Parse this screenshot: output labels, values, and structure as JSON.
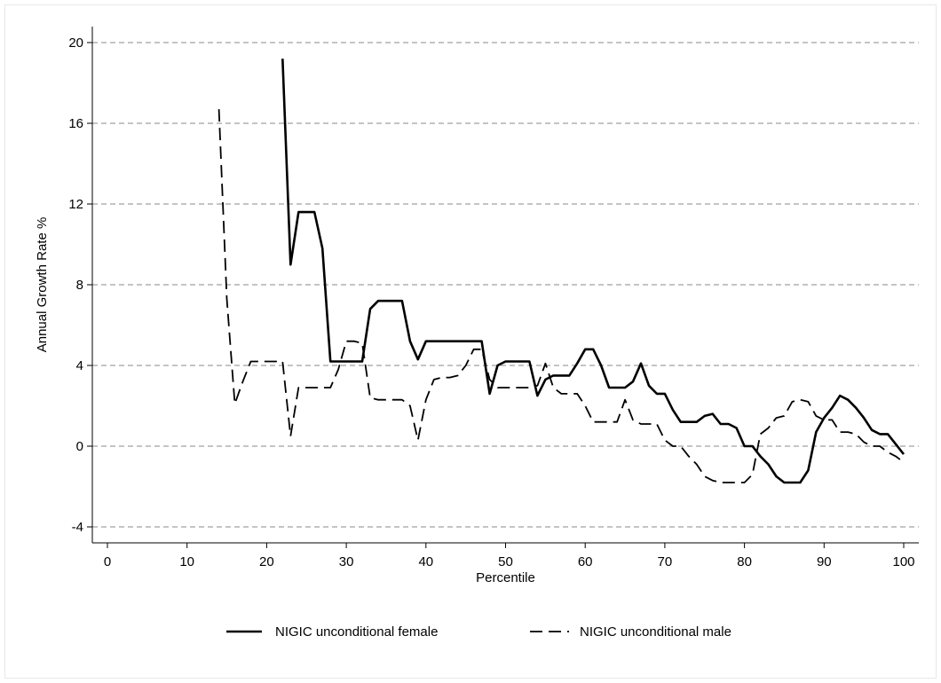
{
  "chart_data": {
    "type": "line",
    "title": "",
    "xlabel": "Percentile",
    "ylabel": "Annual Growth Rate %",
    "xlim": [
      0,
      100
    ],
    "ylim": [
      -4,
      20
    ],
    "xticks": [
      0,
      10,
      20,
      30,
      40,
      50,
      60,
      70,
      80,
      90,
      100
    ],
    "yticks": [
      -4,
      0,
      4,
      8,
      12,
      16,
      20
    ],
    "grid": "horizontal dashed",
    "legend_position": "bottom",
    "series": [
      {
        "name": "NIGIC unconditional female",
        "style": "solid",
        "color": "#000000",
        "points": [
          [
            22,
            19.2
          ],
          [
            23,
            9.0
          ],
          [
            24,
            11.6
          ],
          [
            25,
            11.6
          ],
          [
            26,
            11.6
          ],
          [
            27,
            9.8
          ],
          [
            28,
            4.2
          ],
          [
            29,
            4.2
          ],
          [
            30,
            4.2
          ],
          [
            31,
            4.2
          ],
          [
            32,
            4.2
          ],
          [
            33,
            6.8
          ],
          [
            34,
            7.2
          ],
          [
            35,
            7.2
          ],
          [
            36,
            7.2
          ],
          [
            37,
            7.2
          ],
          [
            38,
            5.2
          ],
          [
            39,
            4.3
          ],
          [
            40,
            5.2
          ],
          [
            41,
            5.2
          ],
          [
            42,
            5.2
          ],
          [
            43,
            5.2
          ],
          [
            44,
            5.2
          ],
          [
            45,
            5.2
          ],
          [
            46,
            5.2
          ],
          [
            47,
            5.2
          ],
          [
            48,
            2.6
          ],
          [
            49,
            4.0
          ],
          [
            50,
            4.2
          ],
          [
            51,
            4.2
          ],
          [
            52,
            4.2
          ],
          [
            53,
            4.2
          ],
          [
            54,
            2.5
          ],
          [
            55,
            3.3
          ],
          [
            56,
            3.5
          ],
          [
            57,
            3.5
          ],
          [
            58,
            3.5
          ],
          [
            59,
            4.1
          ],
          [
            60,
            4.8
          ],
          [
            61,
            4.8
          ],
          [
            62,
            4.0
          ],
          [
            63,
            2.9
          ],
          [
            64,
            2.9
          ],
          [
            65,
            2.9
          ],
          [
            66,
            3.2
          ],
          [
            67,
            4.1
          ],
          [
            68,
            3.0
          ],
          [
            69,
            2.6
          ],
          [
            70,
            2.6
          ],
          [
            71,
            1.8
          ],
          [
            72,
            1.2
          ],
          [
            73,
            1.2
          ],
          [
            74,
            1.2
          ],
          [
            75,
            1.5
          ],
          [
            76,
            1.6
          ],
          [
            77,
            1.1
          ],
          [
            78,
            1.1
          ],
          [
            79,
            0.9
          ],
          [
            80,
            0.0
          ],
          [
            81,
            0.0
          ],
          [
            82,
            -0.5
          ],
          [
            83,
            -0.9
          ],
          [
            84,
            -1.5
          ],
          [
            85,
            -1.8
          ],
          [
            86,
            -1.8
          ],
          [
            87,
            -1.8
          ],
          [
            88,
            -1.2
          ],
          [
            89,
            0.7
          ],
          [
            90,
            1.4
          ],
          [
            91,
            1.9
          ],
          [
            92,
            2.5
          ],
          [
            93,
            2.3
          ],
          [
            94,
            1.9
          ],
          [
            95,
            1.4
          ],
          [
            96,
            0.8
          ],
          [
            97,
            0.6
          ],
          [
            98,
            0.6
          ],
          [
            99,
            0.1
          ],
          [
            100,
            -0.4
          ]
        ]
      },
      {
        "name": "NIGIC unconditional male",
        "style": "dashed",
        "color": "#000000",
        "points": [
          [
            14,
            16.7
          ],
          [
            15,
            7.3
          ],
          [
            16,
            2.1
          ],
          [
            17,
            3.2
          ],
          [
            18,
            4.2
          ],
          [
            19,
            4.2
          ],
          [
            20,
            4.2
          ],
          [
            21,
            4.2
          ],
          [
            22,
            4.2
          ],
          [
            23,
            0.5
          ],
          [
            24,
            2.9
          ],
          [
            25,
            2.9
          ],
          [
            26,
            2.9
          ],
          [
            27,
            2.9
          ],
          [
            28,
            2.9
          ],
          [
            29,
            3.8
          ],
          [
            30,
            5.2
          ],
          [
            31,
            5.2
          ],
          [
            32,
            5.1
          ],
          [
            33,
            2.4
          ],
          [
            34,
            2.3
          ],
          [
            35,
            2.3
          ],
          [
            36,
            2.3
          ],
          [
            37,
            2.3
          ],
          [
            38,
            2.0
          ],
          [
            39,
            0.3
          ],
          [
            40,
            2.3
          ],
          [
            41,
            3.3
          ],
          [
            42,
            3.4
          ],
          [
            43,
            3.4
          ],
          [
            44,
            3.5
          ],
          [
            45,
            4.0
          ],
          [
            46,
            4.8
          ],
          [
            47,
            4.8
          ],
          [
            48,
            3.3
          ],
          [
            49,
            2.9
          ],
          [
            50,
            2.9
          ],
          [
            51,
            2.9
          ],
          [
            52,
            2.9
          ],
          [
            53,
            2.9
          ],
          [
            54,
            3.0
          ],
          [
            55,
            4.1
          ],
          [
            56,
            2.9
          ],
          [
            57,
            2.6
          ],
          [
            58,
            2.6
          ],
          [
            59,
            2.6
          ],
          [
            60,
            2.0
          ],
          [
            61,
            1.2
          ],
          [
            62,
            1.2
          ],
          [
            63,
            1.2
          ],
          [
            64,
            1.2
          ],
          [
            65,
            2.3
          ],
          [
            66,
            1.3
          ],
          [
            67,
            1.1
          ],
          [
            68,
            1.1
          ],
          [
            69,
            1.1
          ],
          [
            70,
            0.3
          ],
          [
            71,
            0.0
          ],
          [
            72,
            0.0
          ],
          [
            73,
            -0.5
          ],
          [
            74,
            -0.9
          ],
          [
            75,
            -1.5
          ],
          [
            76,
            -1.7
          ],
          [
            77,
            -1.8
          ],
          [
            78,
            -1.8
          ],
          [
            79,
            -1.8
          ],
          [
            80,
            -1.8
          ],
          [
            81,
            -1.4
          ],
          [
            82,
            0.6
          ],
          [
            83,
            0.9
          ],
          [
            84,
            1.4
          ],
          [
            85,
            1.5
          ],
          [
            86,
            2.2
          ],
          [
            87,
            2.3
          ],
          [
            88,
            2.2
          ],
          [
            89,
            1.5
          ],
          [
            90,
            1.3
          ],
          [
            91,
            1.3
          ],
          [
            92,
            0.7
          ],
          [
            93,
            0.7
          ],
          [
            94,
            0.6
          ],
          [
            95,
            0.2
          ],
          [
            96,
            0.0
          ],
          [
            97,
            0.0
          ],
          [
            98,
            -0.3
          ],
          [
            99,
            -0.5
          ],
          [
            100,
            -0.8
          ]
        ]
      }
    ]
  }
}
